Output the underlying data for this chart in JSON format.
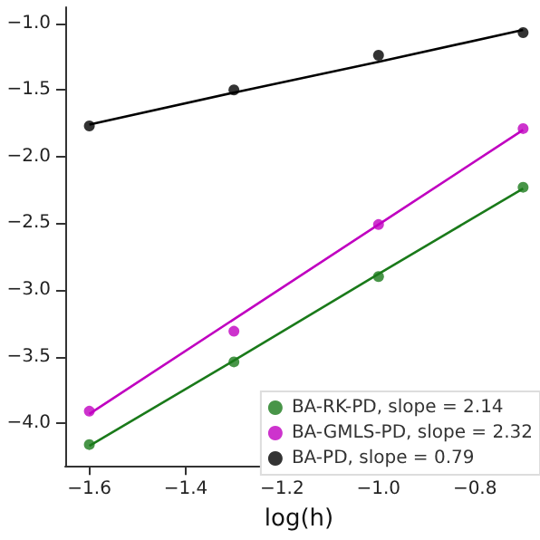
{
  "chart_data": {
    "type": "scatter",
    "xlabel": "log(h)",
    "x": [
      -1.6,
      -1.3,
      -1.0,
      -0.7
    ],
    "series": [
      {
        "name": "BA-RK-PD, slope = 2.14",
        "color": "#1a7a1a",
        "values": [
          -4.16,
          -3.54,
          -2.9,
          -2.23
        ]
      },
      {
        "name": "BA-GMLS-PD, slope = 2.32",
        "color": "#c000c0",
        "values": [
          -3.91,
          -3.31,
          -2.51,
          -1.79
        ]
      },
      {
        "name": "BA-PD, slope = 0.79",
        "color": "#000000",
        "values": [
          -1.77,
          -1.5,
          -1.24,
          -1.07
        ]
      },
      {
        "type": "line",
        "marker": "none",
        "color": "#1a7a1a",
        "values": [
          -4.17,
          -3.53,
          -2.88,
          -2.24
        ]
      },
      {
        "type": "line",
        "marker": "none",
        "color": "#c000c0",
        "values": [
          -3.93,
          -3.22,
          -2.51,
          -1.8
        ]
      },
      {
        "type": "line",
        "marker": "none",
        "color": "#000000",
        "values": [
          -1.76,
          -1.52,
          -1.29,
          -1.05
        ]
      }
    ],
    "xlim": [
      -1.65,
      -0.68
    ],
    "xticks": [
      {
        "value": -1.6,
        "label": "−1.6"
      },
      {
        "value": -1.4,
        "label": "−1.4"
      },
      {
        "value": -1.2,
        "label": "−1.2"
      },
      {
        "value": -1.0,
        "label": "−1.0"
      },
      {
        "value": -0.8,
        "label": "−0.8"
      }
    ],
    "ylim": [
      -4.32,
      -0.88
    ],
    "yticks": [
      {
        "value": -4.0,
        "label": "−4.0"
      },
      {
        "value": -3.5,
        "label": "−3.5"
      },
      {
        "value": -3.0,
        "label": "−3.0"
      },
      {
        "value": -2.5,
        "label": "−2.5"
      },
      {
        "value": -2.0,
        "label": "−2.0"
      },
      {
        "value": -1.5,
        "label": "−1.5"
      },
      {
        "value": -1.0,
        "label": "−1.0"
      }
    ],
    "legend": "bottom right",
    "grid": false,
    "marker": "circle"
  }
}
